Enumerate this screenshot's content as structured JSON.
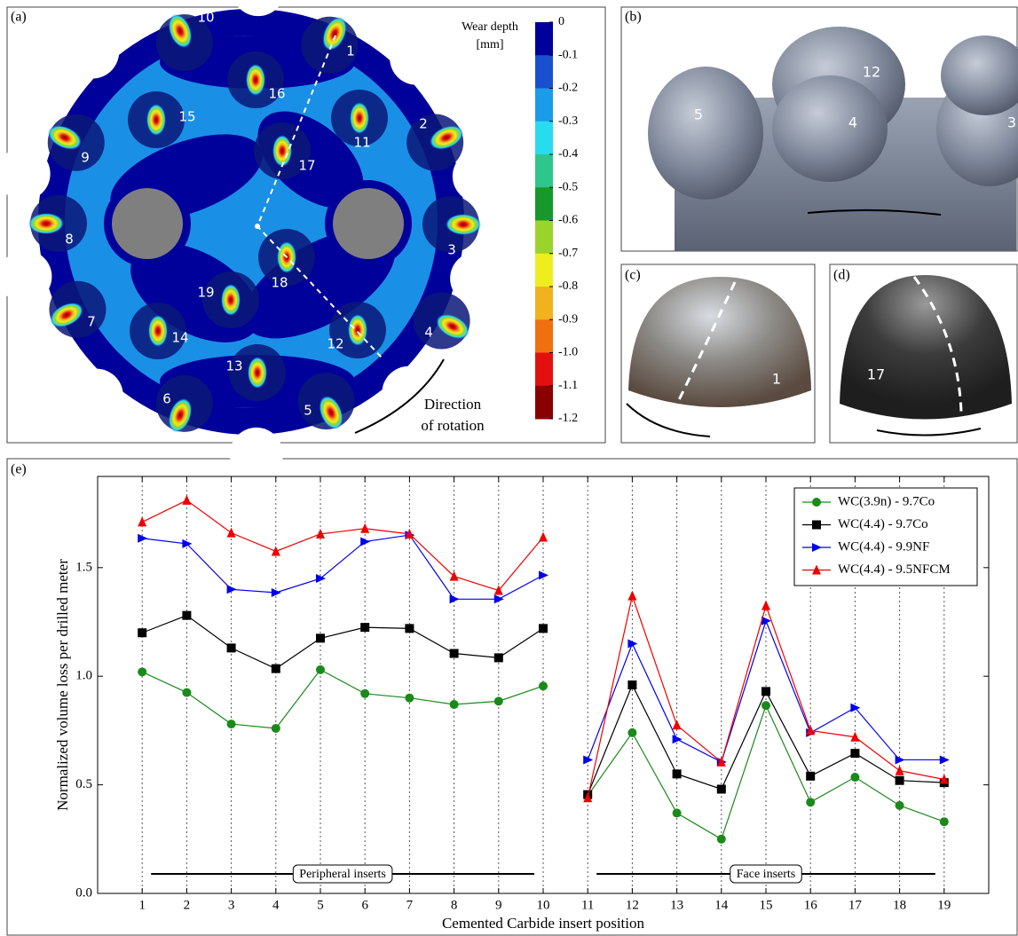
{
  "panel_a": {
    "label": "(a)",
    "colorbar": {
      "title": [
        "Wear depth",
        "[mm]"
      ],
      "lim": [
        0,
        -1.2
      ],
      "ticks": [
        0,
        -0.1,
        -0.2,
        -0.3,
        -0.4,
        -0.5,
        -0.6,
        -0.7,
        -0.8,
        -0.9,
        {
          "value": -1,
          "label": "-1.0"
        },
        -1.1,
        -1.2
      ],
      "colors": [
        "#00009a",
        "#1a4fd0",
        "#1a9ce8",
        "#28dcef",
        "#2ec68c",
        "#16992a",
        "#9ad42a",
        "#eeee1e",
        "#f2b21e",
        "#f07010",
        "#e41010",
        "#8b0000"
      ]
    },
    "insert_labels": [
      "1",
      "2",
      "3",
      "4",
      "5",
      "6",
      "7",
      "8",
      "9",
      "10",
      "11",
      "12",
      "13",
      "14",
      "15",
      "16",
      "17",
      "18",
      "19"
    ],
    "annotation": [
      "Direction",
      "of rotation"
    ]
  },
  "panel_b": {
    "label": "(b)",
    "insert_labels": [
      "5",
      "12",
      "4",
      "3"
    ]
  },
  "panel_c": {
    "label": "(c)",
    "insert_label": "1"
  },
  "panel_d": {
    "label": "(d)",
    "insert_label": "17"
  },
  "chart_data": {
    "type": "line",
    "panel_label": "(e)",
    "xlabel": "Cemented Carbide insert position",
    "ylabel": "Normalized volume loss per drilled meter",
    "x": [
      1,
      2,
      3,
      4,
      5,
      6,
      7,
      8,
      9,
      10,
      11,
      12,
      13,
      14,
      15,
      16,
      17,
      18,
      19
    ],
    "xlim": [
      0,
      20
    ],
    "xticks": [
      1,
      2,
      3,
      4,
      5,
      6,
      7,
      8,
      9,
      10,
      11,
      12,
      13,
      14,
      15,
      16,
      17,
      18,
      19
    ],
    "ylim": [
      0,
      1.92
    ],
    "yticks": [
      {
        "value": 0,
        "label": "0.0"
      },
      0.5,
      {
        "value": 1,
        "label": "1.0"
      },
      1.5
    ],
    "grid": "x",
    "legend": "upper right",
    "groups": [
      {
        "label": "Peripheral inserts",
        "from": 1,
        "to": 10
      },
      {
        "label": "Face inserts",
        "from": 11,
        "to": 19
      }
    ],
    "series": [
      {
        "name": "WC(3.9n) - 9.7Co",
        "color": "#1a8a1a",
        "marker": "circle",
        "values": [
          1.02,
          0.925,
          0.78,
          0.76,
          1.03,
          0.92,
          0.9,
          0.87,
          0.885,
          0.955,
          0.45,
          0.74,
          0.37,
          0.25,
          0.865,
          0.42,
          0.535,
          0.405,
          0.33
        ]
      },
      {
        "name": "WC(4.4) - 9.7Co",
        "color": "#000000",
        "marker": "square",
        "values": [
          1.2,
          1.28,
          1.13,
          1.035,
          1.175,
          1.225,
          1.22,
          1.105,
          1.085,
          1.22,
          0.455,
          0.96,
          0.55,
          0.48,
          0.93,
          0.54,
          0.645,
          0.52,
          0.51
        ]
      },
      {
        "name": "WC(4.4) - 9.9NF",
        "color": "#0000ee",
        "marker": "triangle-right",
        "values": [
          1.635,
          1.61,
          1.4,
          1.385,
          1.45,
          1.62,
          1.65,
          1.355,
          1.355,
          1.465,
          0.615,
          1.15,
          0.71,
          0.605,
          1.255,
          0.74,
          0.855,
          0.615,
          0.615
        ]
      },
      {
        "name": "WC(4.4) - 9.5NFCM",
        "color": "#ee0000",
        "marker": "triangle-up",
        "values": [
          1.71,
          1.81,
          1.66,
          1.575,
          1.655,
          1.68,
          1.655,
          1.46,
          1.395,
          1.64,
          0.44,
          1.37,
          0.775,
          0.605,
          1.325,
          0.75,
          0.72,
          0.565,
          0.525
        ]
      }
    ]
  }
}
